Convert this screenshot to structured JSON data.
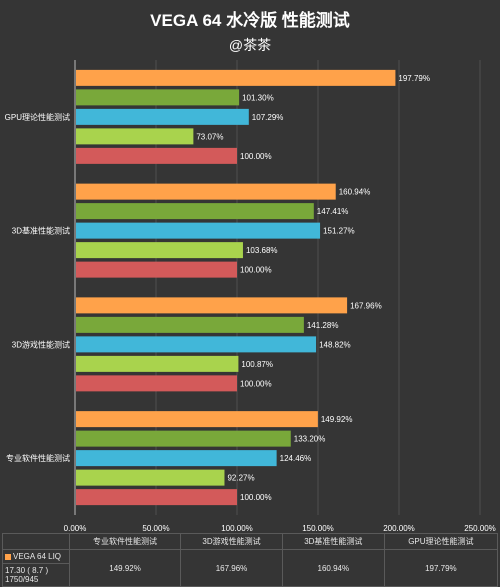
{
  "title": "VEGA 64 水冷版 性能测试",
  "subtitle": "@茶茶",
  "chart_data": {
    "type": "bar",
    "orientation": "horizontal",
    "categories": [
      "专业软件性能测试",
      "3D游戏性能测试",
      "3D基准性能测试",
      "GPU理论性能测试"
    ],
    "series": [
      {
        "name": "VEGA 64 LIQ",
        "color": "#ffa24a",
        "values": [
          149.92,
          167.96,
          160.94,
          197.79
        ],
        "labels": [
          "149.92%",
          "167.96%",
          "160.94%",
          "197.79%"
        ]
      },
      {
        "name": "",
        "color": "#79a83a",
        "values": [
          133.2,
          141.28,
          147.41,
          101.3
        ],
        "labels": [
          "133.20%",
          "141.28%",
          "147.41%",
          "101.30%"
        ]
      },
      {
        "name": "",
        "color": "#41b7d9",
        "values": [
          124.46,
          148.82,
          151.27,
          107.29
        ],
        "labels": [
          "124.46%",
          "148.82%",
          "151.27%",
          "107.29%"
        ]
      },
      {
        "name": "",
        "color": "#a9d34d",
        "values": [
          92.27,
          100.87,
          103.68,
          73.07
        ],
        "labels": [
          "92.27%",
          "100.87%",
          "103.68%",
          "73.07%"
        ]
      },
      {
        "name": "",
        "color": "#d35a5a",
        "values": [
          100.0,
          100.0,
          100.0,
          100.0
        ],
        "labels": [
          "100.00%",
          "100.00%",
          "100.00%",
          "100.00%"
        ]
      }
    ],
    "xlim": [
      0,
      250
    ],
    "xticks": [
      0,
      50,
      100,
      150,
      200,
      250
    ],
    "xtick_labels": [
      "0.00%",
      "50.00%",
      "100.00%",
      "150.00%",
      "200.00%",
      "250.00%"
    ],
    "grid": true
  },
  "data_table": {
    "headers": [
      "专业软件性能测试",
      "3D游戏性能测试",
      "3D基准性能测试",
      "GPU理论性能测试"
    ],
    "rows": [
      {
        "legend": "VEGA 64 LIQ",
        "legend_color": "#ffa24a",
        "values": [
          "149.92%",
          "167.96%",
          "160.94%",
          "197.79%"
        ]
      }
    ],
    "row_sublabels": [
      "17.30 ( 8.7 )",
      "1750/945"
    ]
  }
}
